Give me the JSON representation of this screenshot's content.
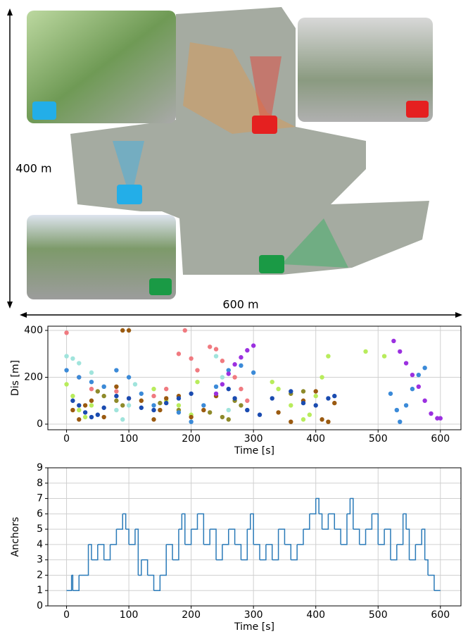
{
  "map": {
    "height_label": "400 m",
    "width_label": "600 m"
  },
  "chart_data": [
    {
      "type": "scatter",
      "ylabel": "Dis [m]",
      "xlabel": "Time [s]",
      "xlim": [
        -30,
        633
      ],
      "ylim": [
        -24,
        418
      ],
      "xticks": [
        0,
        100,
        200,
        300,
        400,
        500,
        600
      ],
      "yticks": [
        0,
        200,
        400
      ],
      "grid": true,
      "series": [
        {
          "color": "#f07a80",
          "x": [
            0,
            20,
            40,
            60,
            80,
            100,
            140,
            160,
            180,
            190,
            200,
            210,
            230,
            240,
            250,
            270,
            280,
            290
          ],
          "values": [
            390,
            200,
            150,
            160,
            140,
            110,
            120,
            150,
            300,
            400,
            280,
            230,
            330,
            320,
            270,
            200,
            150,
            100
          ]
        },
        {
          "color": "#a0e4dc",
          "x": [
            0,
            10,
            20,
            40,
            60,
            80,
            90,
            100,
            110,
            240,
            250,
            260
          ],
          "values": [
            290,
            280,
            260,
            220,
            160,
            60,
            20,
            80,
            170,
            290,
            200,
            60
          ]
        },
        {
          "color": "#b8ec5c",
          "x": [
            0,
            10,
            20,
            30,
            40,
            140,
            160,
            180,
            200,
            210,
            330,
            340,
            360,
            380,
            390,
            400,
            410,
            420,
            480,
            510
          ],
          "values": [
            170,
            120,
            60,
            30,
            80,
            150,
            100,
            80,
            40,
            180,
            180,
            150,
            80,
            20,
            40,
            120,
            200,
            290,
            310,
            290
          ]
        },
        {
          "color": "#8e8a2a",
          "x": [
            50,
            60,
            80,
            90,
            150,
            180,
            230,
            250,
            260,
            270,
            280,
            360,
            380
          ],
          "values": [
            140,
            120,
            100,
            80,
            90,
            60,
            50,
            30,
            20,
            100,
            80,
            130,
            140
          ]
        },
        {
          "color": "#9a5a10",
          "x": [
            10,
            20,
            30,
            40,
            60,
            80,
            90,
            100,
            120,
            140,
            150,
            160,
            180,
            200,
            220,
            240,
            340,
            360,
            380,
            400,
            410,
            420,
            430
          ],
          "values": [
            60,
            20,
            80,
            100,
            30,
            160,
            400,
            400,
            100,
            20,
            60,
            110,
            120,
            30,
            60,
            120,
            50,
            10,
            100,
            140,
            20,
            10,
            90
          ]
        },
        {
          "color": "#3b8ad8",
          "x": [
            0,
            20,
            40,
            60,
            80,
            100,
            120,
            140,
            180,
            200,
            220,
            240,
            260,
            280,
            300,
            520,
            530,
            535,
            545,
            555,
            565,
            575
          ],
          "values": [
            230,
            200,
            180,
            160,
            230,
            200,
            130,
            80,
            50,
            10,
            80,
            160,
            230,
            250,
            220,
            130,
            60,
            10,
            80,
            150,
            210,
            240
          ]
        },
        {
          "color": "#1a4bb0",
          "x": [
            10,
            20,
            30,
            40,
            50,
            60,
            80,
            100,
            120,
            140,
            160,
            180,
            200,
            260,
            270,
            290,
            310,
            330,
            360,
            380,
            400,
            420,
            430
          ],
          "values": [
            100,
            80,
            50,
            30,
            40,
            70,
            120,
            110,
            70,
            60,
            90,
            110,
            130,
            150,
            110,
            60,
            40,
            110,
            140,
            90,
            80,
            110,
            120
          ]
        },
        {
          "color": "#9b30e0",
          "x": [
            240,
            250,
            260,
            270,
            280,
            290,
            300,
            525,
            535,
            545,
            555,
            565,
            575,
            585,
            595,
            600
          ],
          "values": [
            130,
            170,
            215,
            255,
            285,
            315,
            335,
            355,
            310,
            260,
            210,
            160,
            100,
            45,
            25,
            25
          ]
        }
      ]
    },
    {
      "type": "step",
      "ylabel": "Anchors",
      "xlabel": "Time [s]",
      "xlim": [
        -30,
        633
      ],
      "ylim": [
        0,
        9
      ],
      "xticks": [
        0,
        100,
        200,
        300,
        400,
        500,
        600
      ],
      "yticks": [
        0,
        1,
        2,
        3,
        4,
        5,
        6,
        7,
        8,
        9
      ],
      "grid": true,
      "series": [
        {
          "color": "#2a7ab8",
          "x": [
            0,
            8,
            10,
            20,
            35,
            40,
            50,
            60,
            70,
            80,
            90,
            95,
            100,
            110,
            115,
            120,
            130,
            140,
            150,
            160,
            170,
            180,
            185,
            190,
            200,
            210,
            220,
            230,
            240,
            250,
            260,
            270,
            280,
            290,
            295,
            300,
            310,
            320,
            330,
            340,
            350,
            360,
            370,
            380,
            390,
            400,
            405,
            410,
            420,
            430,
            440,
            450,
            455,
            460,
            470,
            480,
            490,
            500,
            510,
            520,
            530,
            540,
            545,
            550,
            560,
            570,
            575,
            580,
            590,
            600
          ],
          "values": [
            1,
            2,
            1,
            2,
            4,
            3,
            4,
            3,
            4,
            5,
            6,
            5,
            4,
            5,
            2,
            3,
            2,
            1,
            2,
            4,
            3,
            5,
            6,
            4,
            5,
            6,
            4,
            5,
            3,
            4,
            5,
            4,
            3,
            5,
            6,
            4,
            3,
            4,
            3,
            5,
            4,
            3,
            4,
            5,
            6,
            7,
            6,
            5,
            6,
            5,
            4,
            6,
            7,
            5,
            4,
            5,
            6,
            4,
            5,
            3,
            4,
            6,
            5,
            3,
            4,
            5,
            3,
            2,
            1,
            1
          ]
        }
      ]
    }
  ]
}
